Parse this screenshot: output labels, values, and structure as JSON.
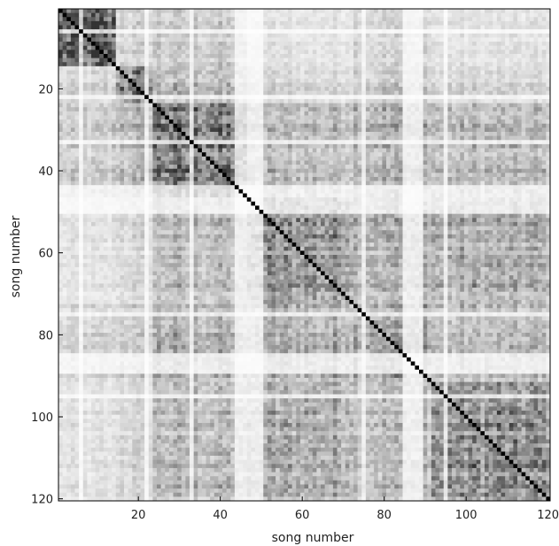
{
  "chart_data": {
    "type": "heatmap",
    "title": "",
    "xlabel": "song number",
    "ylabel": "song number",
    "n": 120,
    "xlim": [
      1,
      120
    ],
    "ylim": [
      1,
      120
    ],
    "x_ticks": [
      20,
      40,
      60,
      80,
      100,
      120
    ],
    "y_ticks": [
      20,
      40,
      60,
      80,
      100,
      120
    ],
    "y_axis_direction": "top-to-bottom",
    "colormap": "grayscale (white = low similarity, black = high similarity)",
    "diagonal_value": 1.0,
    "cluster_boundaries": [
      1,
      15,
      24,
      47,
      73,
      92,
      121
    ],
    "cluster_mean_similarity": [
      [
        0.55,
        0.15,
        0.18,
        0.1,
        0.15,
        0.1
      ],
      [
        0.15,
        0.45,
        0.25,
        0.15,
        0.2,
        0.15
      ],
      [
        0.18,
        0.25,
        0.5,
        0.25,
        0.3,
        0.25
      ],
      [
        0.1,
        0.15,
        0.25,
        0.4,
        0.3,
        0.3
      ],
      [
        0.15,
        0.2,
        0.3,
        0.3,
        0.35,
        0.25
      ],
      [
        0.1,
        0.15,
        0.25,
        0.3,
        0.25,
        0.4
      ]
    ],
    "low_similarity_bands": [
      6,
      22,
      33,
      44,
      45,
      46,
      47,
      48,
      49,
      50,
      75,
      85,
      86,
      87,
      88,
      89,
      95
    ],
    "grid": false
  },
  "axes": {
    "xlabel": "song number",
    "ylabel": "song number",
    "x_tick_labels": [
      "20",
      "40",
      "60",
      "80",
      "100",
      "120"
    ],
    "y_tick_labels": [
      "20",
      "40",
      "60",
      "80",
      "100",
      "120"
    ]
  }
}
